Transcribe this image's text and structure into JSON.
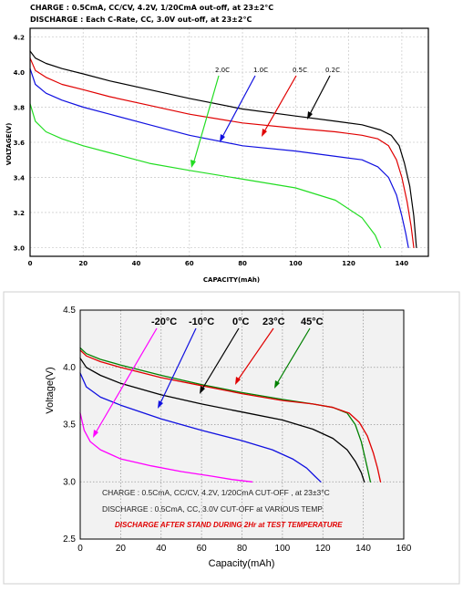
{
  "chart_data": [
    {
      "type": "line",
      "header_lines": [
        "CHARGE : 0.5CmA, CC/CV, 4.2V, 1/20CmA out-off, at 23±2°C",
        "DISCHARGE : Each C-Rate, CC, 3.0V out-off, at 23±2°C"
      ],
      "xlabel": "CAPACITY(mAh)",
      "ylabel": "VOLTAGE(V)",
      "xlim": [
        0,
        150
      ],
      "ylim": [
        2.95,
        4.25
      ],
      "xticks": [
        "0",
        "20",
        "40",
        "60",
        "80",
        "100",
        "120",
        "140"
      ],
      "yticks": [
        "3.0",
        "3.2",
        "3.4",
        "3.6",
        "3.8",
        "4.0",
        "4.2"
      ],
      "grid": true,
      "series": [
        {
          "name": "0.2C",
          "color": "#000000",
          "x": [
            0,
            2,
            6,
            12,
            20,
            30,
            45,
            60,
            80,
            100,
            115,
            125,
            132,
            136,
            139,
            141,
            143,
            144.5,
            145.5
          ],
          "y": [
            4.12,
            4.08,
            4.05,
            4.02,
            3.99,
            3.95,
            3.9,
            3.85,
            3.79,
            3.75,
            3.72,
            3.7,
            3.67,
            3.64,
            3.58,
            3.48,
            3.35,
            3.18,
            3.0
          ]
        },
        {
          "name": "0.5C",
          "color": "#e00000",
          "x": [
            0,
            2,
            6,
            12,
            20,
            30,
            45,
            60,
            80,
            100,
            115,
            125,
            131,
            135,
            138,
            140,
            142,
            143.5,
            144.5
          ],
          "y": [
            4.08,
            4.01,
            3.97,
            3.93,
            3.9,
            3.86,
            3.81,
            3.76,
            3.71,
            3.68,
            3.66,
            3.64,
            3.62,
            3.58,
            3.5,
            3.4,
            3.26,
            3.12,
            3.0
          ]
        },
        {
          "name": "1.0C",
          "color": "#1010e0",
          "x": [
            0,
            2,
            6,
            12,
            20,
            30,
            45,
            60,
            80,
            100,
            115,
            125,
            131,
            135,
            138,
            140,
            141.5,
            142.5
          ],
          "y": [
            4.02,
            3.93,
            3.88,
            3.84,
            3.8,
            3.76,
            3.7,
            3.64,
            3.58,
            3.55,
            3.52,
            3.5,
            3.46,
            3.4,
            3.3,
            3.18,
            3.08,
            3.0
          ]
        },
        {
          "name": "2.0C",
          "color": "#22dd22",
          "x": [
            0,
            2,
            6,
            12,
            20,
            30,
            45,
            60,
            80,
            100,
            115,
            125,
            130,
            132
          ],
          "y": [
            3.82,
            3.72,
            3.66,
            3.62,
            3.58,
            3.54,
            3.48,
            3.44,
            3.39,
            3.34,
            3.27,
            3.17,
            3.07,
            3.0
          ]
        }
      ]
    },
    {
      "type": "line",
      "xlabel": "Capacity(mAh)",
      "ylabel": "Voltage(V)",
      "xlim": [
        0,
        160
      ],
      "ylim": [
        2.5,
        4.5
      ],
      "xticks": [
        "0",
        "20",
        "40",
        "60",
        "80",
        "100",
        "120",
        "140",
        "160"
      ],
      "yticks": [
        "2.5",
        "3.0",
        "3.5",
        "4.0",
        "4.5"
      ],
      "grid": true,
      "notes": [
        "CHARGE      : 0.5CmA, CC/CV, 4.2V, 1/20CmA CUT-OFF , at 23±3°C",
        "DISCHARGE : 0.5CmA, CC, 3.0V CUT-OFF at VARIOUS TEMP.",
        "DISCHARGE AFTER STAND DURING 2Hr at TEST TEMPERATURE"
      ],
      "series": [
        {
          "name": "45°C",
          "color": "#008000",
          "x": [
            0,
            3,
            10,
            20,
            40,
            60,
            80,
            100,
            115,
            125,
            132,
            136,
            139,
            141,
            142.5,
            143.5
          ],
          "y": [
            4.17,
            4.12,
            4.07,
            4.02,
            3.93,
            3.85,
            3.78,
            3.72,
            3.68,
            3.65,
            3.6,
            3.5,
            3.35,
            3.2,
            3.08,
            3.0
          ]
        },
        {
          "name": "23°C",
          "color": "#e00000",
          "x": [
            0,
            3,
            10,
            20,
            40,
            60,
            80,
            100,
            115,
            125,
            133,
            138,
            142,
            145,
            147,
            148.5
          ],
          "y": [
            4.15,
            4.1,
            4.05,
            4.0,
            3.91,
            3.84,
            3.77,
            3.71,
            3.68,
            3.65,
            3.6,
            3.52,
            3.4,
            3.25,
            3.12,
            3.0
          ]
        },
        {
          "name": "0°C",
          "color": "#000000",
          "x": [
            0,
            3,
            10,
            20,
            40,
            60,
            80,
            100,
            115,
            125,
            132,
            136,
            139,
            140.5
          ],
          "y": [
            4.08,
            4.0,
            3.93,
            3.86,
            3.76,
            3.68,
            3.61,
            3.54,
            3.46,
            3.38,
            3.28,
            3.18,
            3.08,
            3.0
          ]
        },
        {
          "name": "-10°C",
          "color": "#1010e0",
          "x": [
            0,
            3,
            10,
            20,
            40,
            60,
            80,
            95,
            105,
            112,
            116,
            119
          ],
          "y": [
            3.95,
            3.83,
            3.74,
            3.67,
            3.55,
            3.45,
            3.36,
            3.28,
            3.2,
            3.12,
            3.05,
            3.0
          ]
        },
        {
          "name": "-20°C",
          "color": "#ff00ff",
          "x": [
            0,
            2,
            5,
            10,
            20,
            35,
            50,
            65,
            75,
            85
          ],
          "y": [
            3.6,
            3.45,
            3.35,
            3.28,
            3.2,
            3.14,
            3.09,
            3.05,
            3.02,
            3.0
          ]
        }
      ]
    }
  ]
}
